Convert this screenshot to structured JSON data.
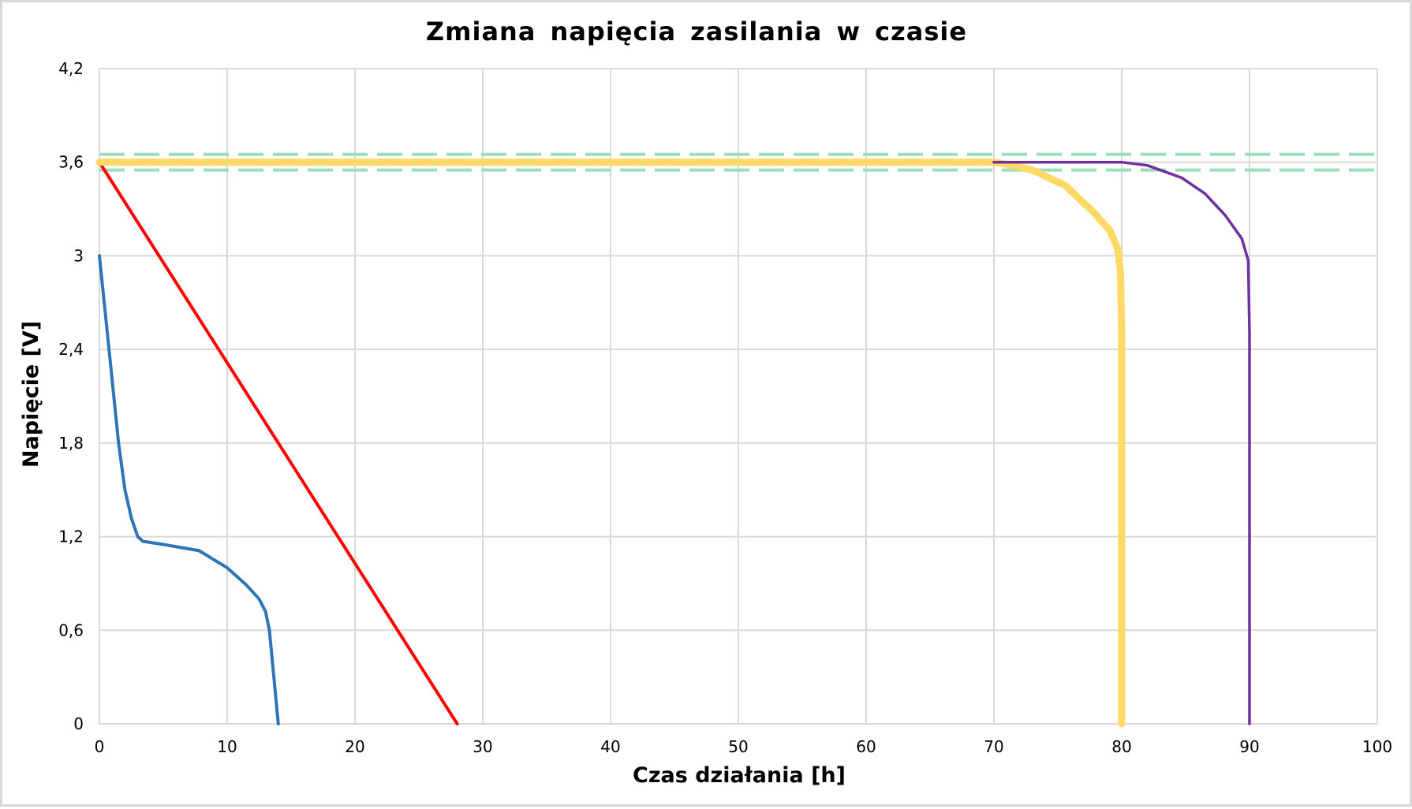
{
  "chart_data": {
    "type": "line",
    "title": "Zmiana napięcia zasilania w czasie",
    "xlabel": "Czas działania [h]",
    "ylabel": "Napięcie [V]",
    "xlim": [
      0,
      100
    ],
    "ylim": [
      0,
      4.2
    ],
    "x_ticks": [
      0,
      10,
      20,
      30,
      40,
      50,
      60,
      70,
      80,
      90,
      100
    ],
    "x_tick_labels": [
      "0",
      "10",
      "20",
      "30",
      "40",
      "50",
      "60",
      "70",
      "80",
      "90",
      "100"
    ],
    "y_ticks": [
      0,
      0.6,
      1.2,
      1.8,
      2.4,
      3.0,
      3.6,
      4.2
    ],
    "y_tick_labels": [
      "0",
      "0,6",
      "1,2",
      "1,8",
      "2,4",
      "3",
      "3,6",
      "4,2"
    ],
    "grid": true,
    "legend": "none",
    "series": [
      {
        "name": "blue-discharge",
        "color": "#2E75B6",
        "width": 4,
        "x": [
          0,
          0.75,
          1.5,
          2.0,
          2.5,
          3.0,
          3.4,
          5.0,
          7.8,
          10.0,
          11.5,
          12.5,
          13.0,
          13.3,
          14.0
        ],
        "y": [
          3.0,
          2.4,
          1.8,
          1.5,
          1.32,
          1.2,
          1.17,
          1.15,
          1.11,
          1.0,
          0.89,
          0.8,
          0.72,
          0.6,
          0.0
        ]
      },
      {
        "name": "red-linear",
        "color": "#FF0000",
        "width": 4,
        "x": [
          0,
          28
        ],
        "y": [
          3.6,
          0.0
        ]
      },
      {
        "name": "yellow-flat-then-drop",
        "color": "#FFD966",
        "width": 9,
        "x": [
          0,
          70,
          71.5,
          73,
          75.6,
          77.9,
          79.1,
          79.7,
          79.9,
          80.0,
          80.0
        ],
        "y": [
          3.6,
          3.6,
          3.58,
          3.55,
          3.45,
          3.27,
          3.16,
          3.04,
          2.9,
          2.5,
          0.0
        ]
      },
      {
        "name": "purple-flat-then-drop",
        "color": "#7030A0",
        "width": 3.5,
        "x": [
          70,
          80,
          82,
          84.7,
          86.5,
          88.1,
          89.4,
          89.9,
          90.0,
          90.0
        ],
        "y": [
          3.6,
          3.6,
          3.58,
          3.5,
          3.4,
          3.26,
          3.11,
          2.97,
          2.5,
          0.0
        ]
      },
      {
        "name": "upper-tolerance",
        "color": "#9ADFB8",
        "width": 4,
        "dashed": true,
        "x": [
          0,
          100
        ],
        "y": [
          3.65,
          3.65
        ]
      },
      {
        "name": "lower-tolerance",
        "color": "#9ADFB8",
        "width": 4,
        "dashed": true,
        "x": [
          0,
          100
        ],
        "y": [
          3.55,
          3.55
        ]
      }
    ]
  }
}
